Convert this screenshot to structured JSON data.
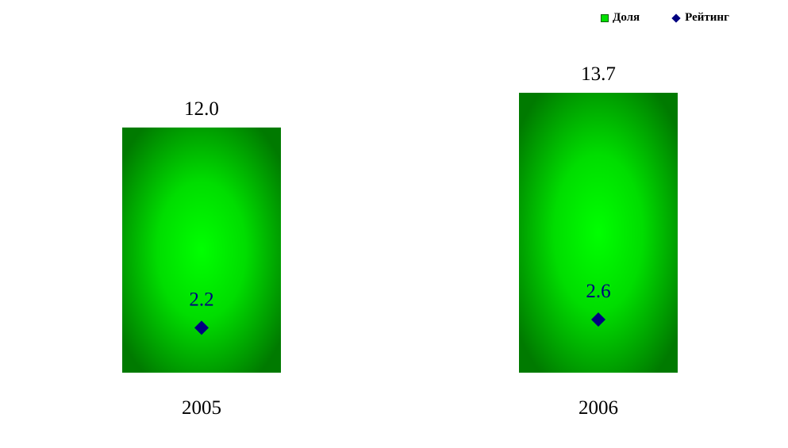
{
  "chart_data": {
    "type": "bar",
    "categories": [
      "2005",
      "2006"
    ],
    "series": [
      {
        "name": "Доля",
        "kind": "bar",
        "values": [
          12.0,
          13.7
        ],
        "labels": [
          "12.0",
          "13.7"
        ],
        "color": "#00c000"
      },
      {
        "name": "Рейтинг",
        "kind": "marker",
        "marker": "diamond",
        "values": [
          2.2,
          2.6
        ],
        "labels": [
          "2.2",
          "2.6"
        ],
        "color": "#000080"
      }
    ],
    "ylim": [
      0,
      13.7
    ],
    "grid": false,
    "legend": "top-right"
  }
}
